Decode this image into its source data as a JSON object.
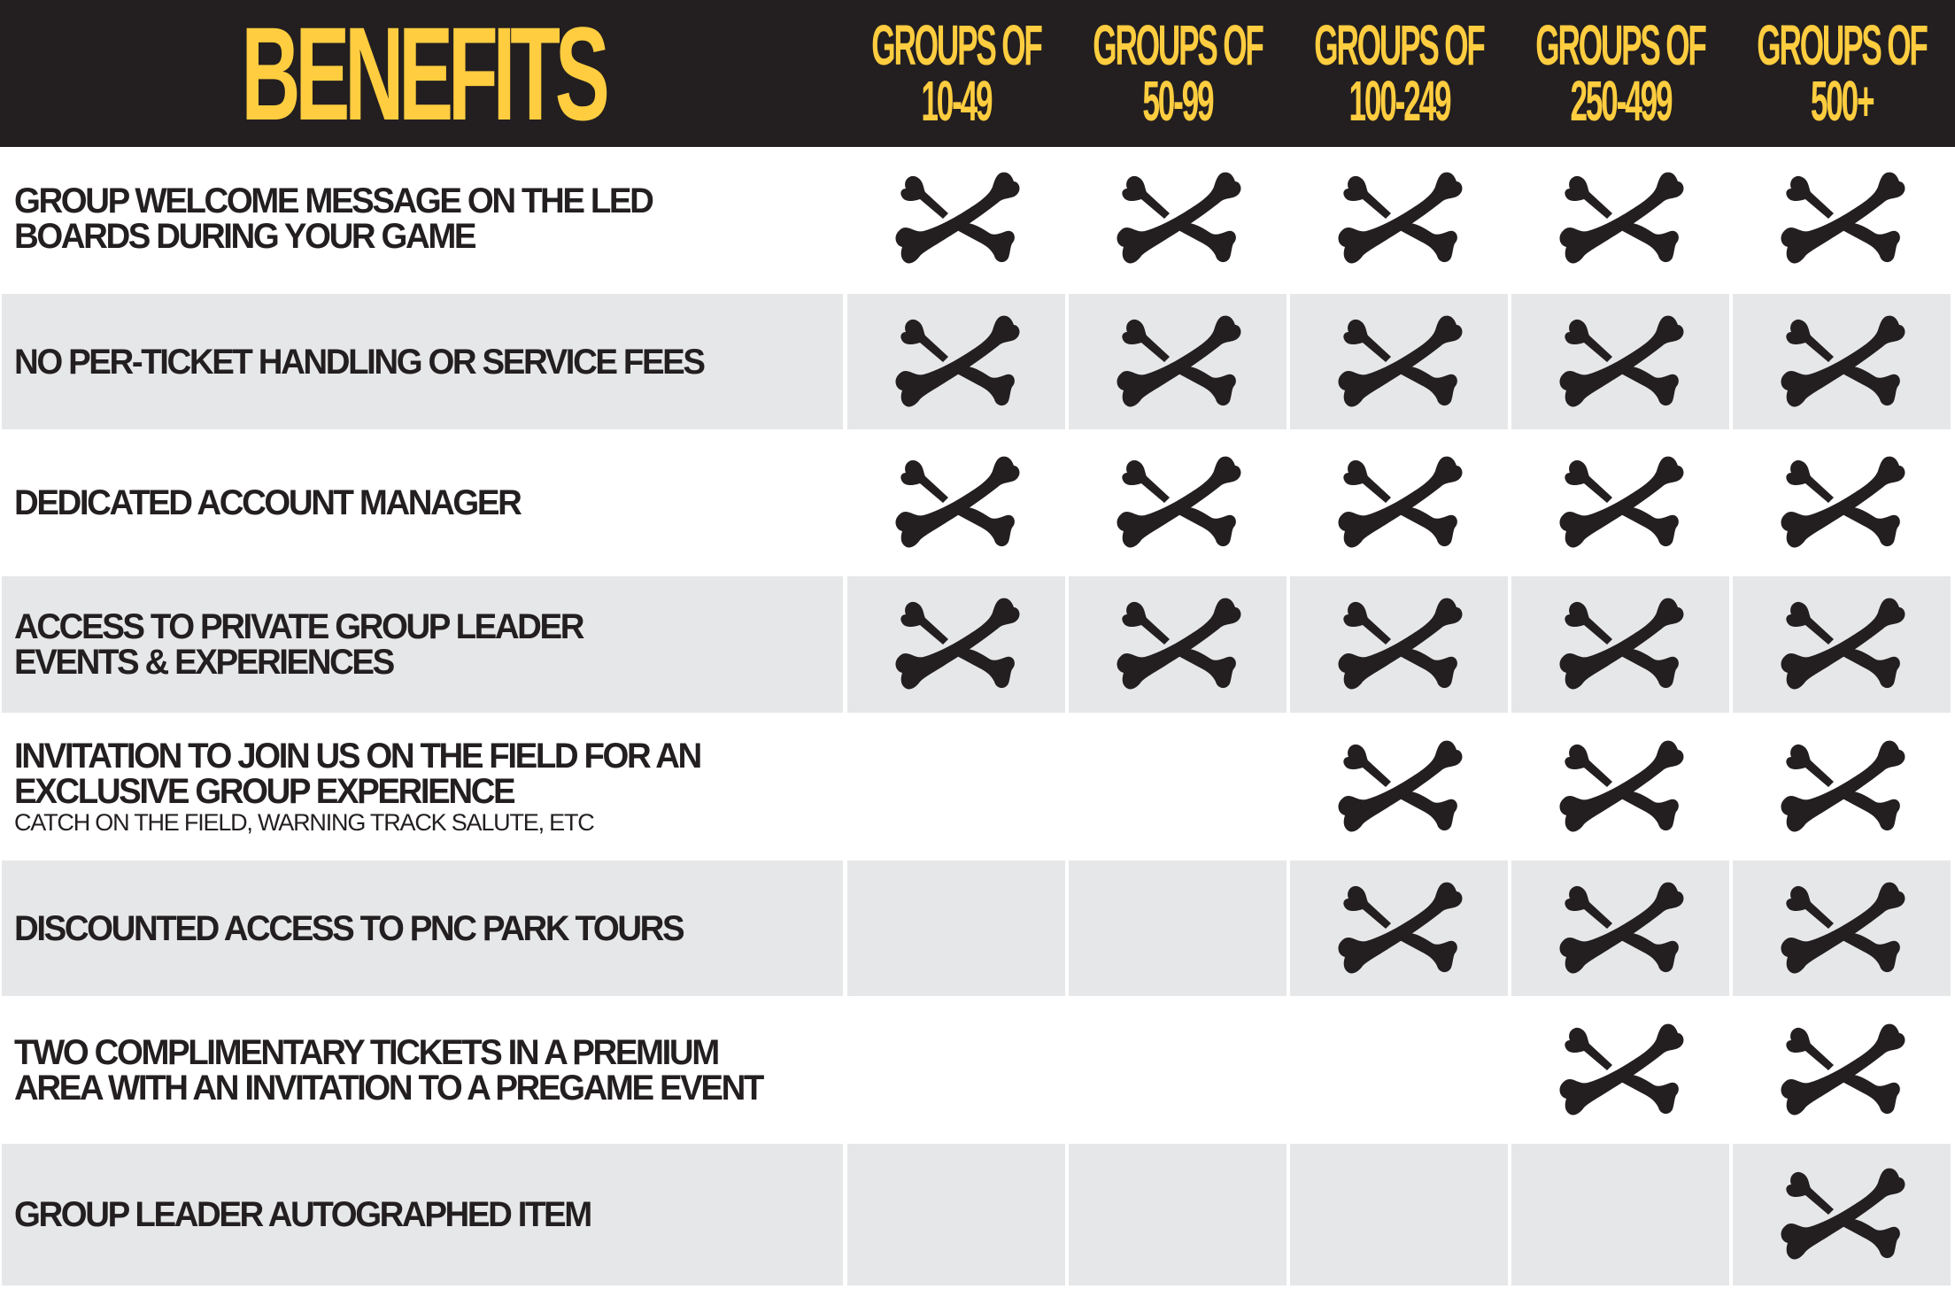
{
  "header": {
    "title": "BENEFITS",
    "columns": [
      {
        "line1": "GROUPS OF",
        "line2": "10-49"
      },
      {
        "line1": "GROUPS OF",
        "line2": "50-99"
      },
      {
        "line1": "GROUPS OF",
        "line2": "100-249"
      },
      {
        "line1": "GROUPS OF",
        "line2": "250-499"
      },
      {
        "line1": "GROUPS OF",
        "line2": "500+"
      }
    ]
  },
  "colors": {
    "header_bg": "#231f20",
    "header_text": "#ffcd3f",
    "row_alt_bg": "#e6e7e8",
    "icon": "#231f20"
  },
  "icon": "crossbones-icon",
  "rows": [
    {
      "label": "GROUP WELCOME MESSAGE ON THE LED\nBOARDS DURING YOUR GAME",
      "sub": "",
      "included": [
        true,
        true,
        true,
        true,
        true
      ]
    },
    {
      "label": "NO PER-TICKET HANDLING OR SERVICE FEES",
      "sub": "",
      "included": [
        true,
        true,
        true,
        true,
        true
      ]
    },
    {
      "label": "DEDICATED ACCOUNT MANAGER",
      "sub": "",
      "included": [
        true,
        true,
        true,
        true,
        true
      ]
    },
    {
      "label": "ACCESS TO PRIVATE GROUP LEADER\nEVENTS & EXPERIENCES",
      "sub": "",
      "included": [
        true,
        true,
        true,
        true,
        true
      ]
    },
    {
      "label": "INVITATION TO JOIN US ON THE FIELD FOR AN\nEXCLUSIVE GROUP EXPERIENCE",
      "sub": "CATCH ON THE FIELD, WARNING TRACK SALUTE, ETC",
      "included": [
        false,
        false,
        true,
        true,
        true
      ]
    },
    {
      "label": "DISCOUNTED ACCESS TO PNC PARK TOURS",
      "sub": "",
      "included": [
        false,
        false,
        true,
        true,
        true
      ]
    },
    {
      "label": "TWO COMPLIMENTARY TICKETS IN A PREMIUM\nAREA WITH AN INVITATION TO A PREGAME EVENT",
      "sub": "",
      "included": [
        false,
        false,
        false,
        true,
        true
      ]
    },
    {
      "label": "GROUP LEADER AUTOGRAPHED ITEM",
      "sub": "",
      "included": [
        false,
        false,
        false,
        false,
        true
      ]
    }
  ]
}
